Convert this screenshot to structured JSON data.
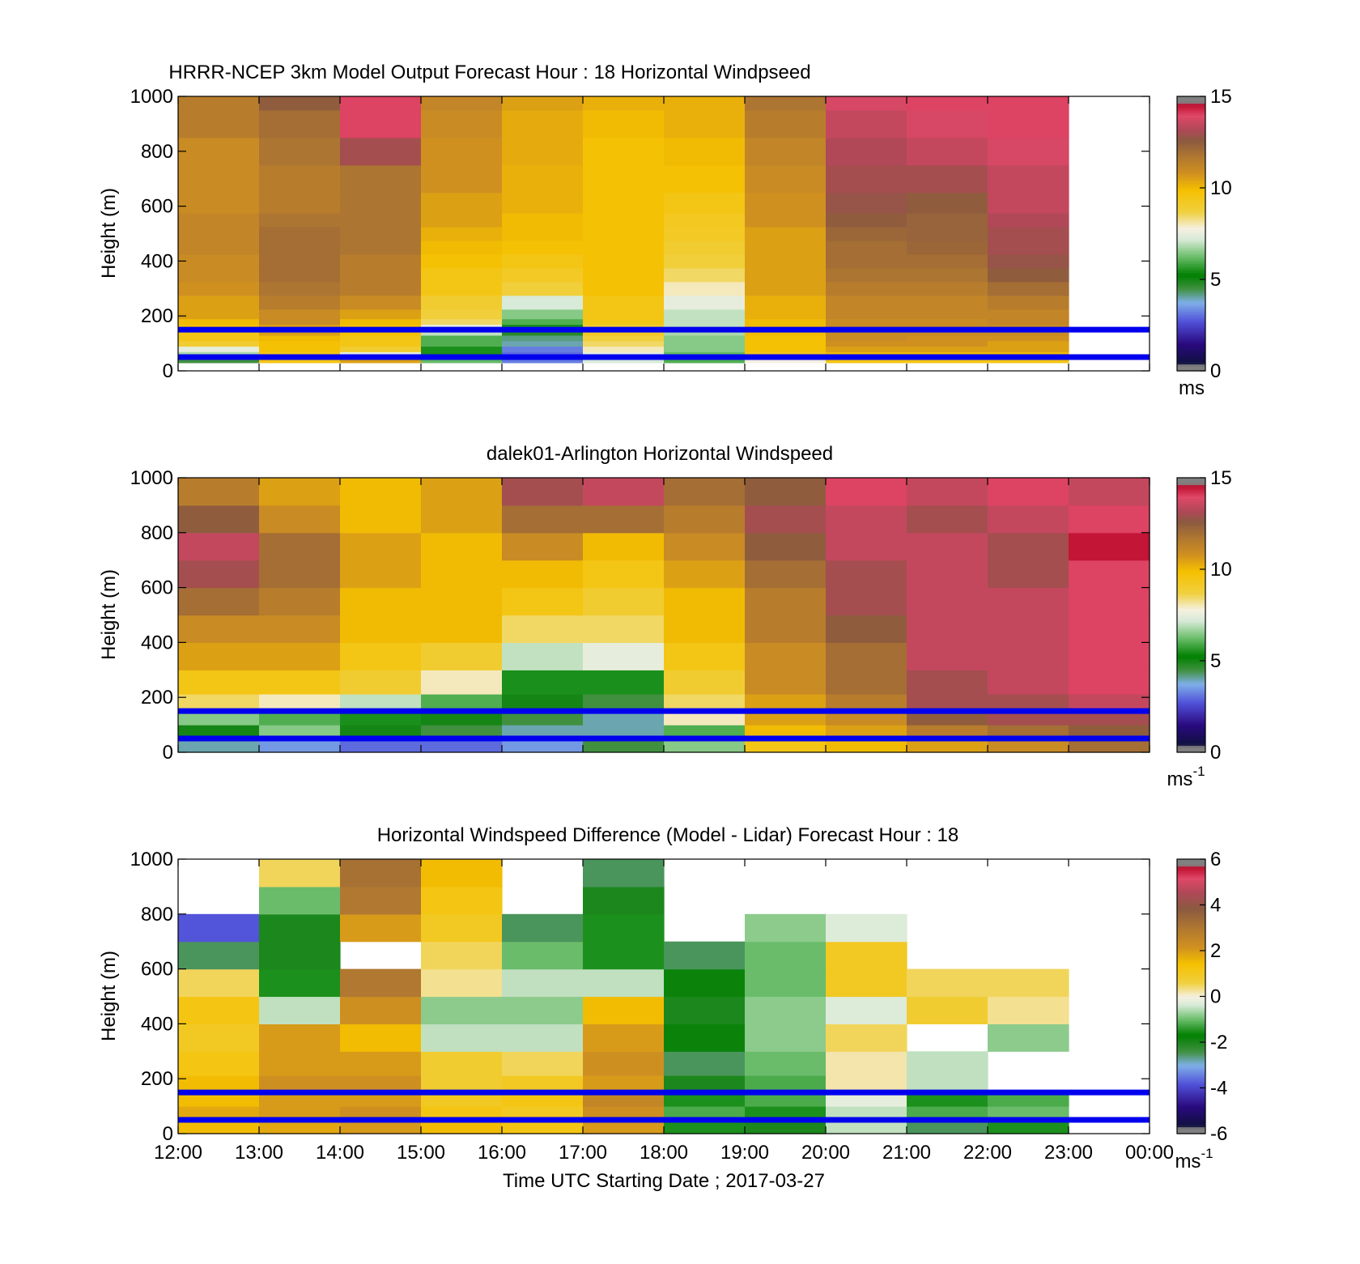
{
  "figure": {
    "xlabel": "Time UTC  Starting Date ; 2017-03-27"
  },
  "chart_data": [
    {
      "type": "heatmap",
      "title": "HRRR-NCEP 3km Model Output   Forecast Hour : 18 Horizontal Windpseed",
      "ylabel": "Height (m)",
      "ylim": [
        0,
        1000
      ],
      "yticks": [
        "0",
        "200",
        "400",
        "600",
        "800",
        "1000"
      ],
      "xticks": [
        "12:00",
        "13:00",
        "14:00",
        "15:00",
        "16:00",
        "17:00",
        "18:00",
        "19:00",
        "20:00",
        "21:00",
        "22:00",
        "23:00",
        "00:00"
      ],
      "colorbar": {
        "label": "ms",
        "ticks": [
          "0",
          "5",
          "10",
          "15"
        ],
        "range": [
          0,
          15
        ],
        "colormap": "wind"
      },
      "reference_lines_m": [
        50,
        150
      ],
      "reference_line_color": "#0000ee",
      "heights_m": [
        40,
        60,
        80,
        100,
        120,
        140,
        160,
        180,
        200,
        250,
        300,
        350,
        400,
        450,
        500,
        550,
        600,
        700,
        800,
        900,
        1000
      ],
      "times_utc": [
        "12:00",
        "13:00",
        "14:00",
        "15:00",
        "16:00",
        "17:00",
        "18:00",
        "19:00",
        "20:00",
        "21:00",
        "22:00"
      ],
      "values": [
        [
          4.5,
          9.5,
          10.5,
          6.2,
          3.2,
          7.2,
          6.0,
          7.8,
          9.5,
          9.5,
          9.5
        ],
        [
          6.8,
          9.5,
          7.5,
          5.5,
          3.0,
          7.5,
          6.2,
          9.5,
          10.0,
          10.0,
          10.0
        ],
        [
          7.5,
          9.8,
          9.0,
          5.5,
          3.2,
          8.0,
          6.5,
          9.8,
          10.5,
          10.5,
          10.5
        ],
        [
          9.0,
          9.8,
          9.5,
          6.0,
          4.0,
          8.5,
          6.5,
          9.8,
          10.8,
          10.8,
          10.5
        ],
        [
          9.5,
          10.0,
          9.5,
          6.0,
          4.2,
          8.8,
          6.5,
          9.8,
          11.0,
          10.8,
          10.8
        ],
        [
          9.5,
          10.5,
          9.8,
          7.0,
          4.8,
          9.2,
          6.8,
          10.0,
          11.0,
          11.0,
          11.0
        ],
        [
          9.8,
          10.5,
          9.8,
          7.5,
          5.5,
          9.0,
          7.0,
          10.0,
          11.0,
          11.0,
          11.0
        ],
        [
          10.0,
          11.0,
          10.0,
          8.5,
          6.0,
          9.5,
          7.0,
          10.0,
          11.0,
          11.0,
          11.2
        ],
        [
          10.5,
          11.0,
          10.5,
          8.8,
          6.5,
          9.5,
          7.0,
          10.2,
          11.2,
          11.2,
          11.2
        ],
        [
          10.5,
          11.5,
          11.0,
          9.0,
          7.2,
          9.5,
          7.5,
          10.2,
          11.2,
          11.2,
          11.5
        ],
        [
          10.8,
          11.8,
          11.5,
          9.5,
          8.8,
          9.8,
          8.0,
          10.5,
          11.5,
          11.5,
          12.0
        ],
        [
          11.0,
          12.0,
          11.5,
          9.5,
          9.2,
          9.8,
          8.5,
          10.5,
          11.8,
          11.8,
          12.5
        ],
        [
          11.0,
          12.0,
          11.5,
          9.8,
          9.5,
          9.8,
          8.8,
          10.5,
          12.0,
          12.0,
          12.8
        ],
        [
          11.2,
          12.0,
          11.8,
          10.0,
          9.8,
          9.8,
          9.0,
          10.5,
          12.0,
          12.2,
          13.0
        ],
        [
          11.2,
          12.0,
          11.8,
          10.2,
          10.0,
          9.8,
          9.2,
          10.5,
          12.2,
          12.3,
          13.0
        ],
        [
          11.2,
          11.8,
          11.8,
          10.5,
          10.0,
          9.8,
          9.3,
          10.8,
          12.5,
          12.3,
          13.2
        ],
        [
          11.0,
          11.5,
          11.8,
          10.5,
          10.2,
          9.8,
          9.5,
          10.8,
          12.8,
          12.5,
          13.5
        ],
        [
          11.0,
          11.5,
          11.8,
          10.8,
          10.2,
          9.8,
          9.8,
          11.0,
          13.0,
          13.0,
          13.5
        ],
        [
          11.0,
          11.8,
          13.0,
          10.8,
          10.3,
          9.8,
          10.0,
          11.2,
          13.2,
          13.5,
          13.8
        ],
        [
          11.5,
          12.0,
          14.0,
          11.0,
          10.3,
          10.0,
          10.2,
          11.5,
          13.5,
          13.8,
          14.0
        ],
        [
          11.5,
          12.5,
          14.0,
          11.2,
          10.5,
          10.2,
          10.2,
          11.8,
          13.8,
          14.0,
          14.0
        ]
      ]
    },
    {
      "type": "heatmap",
      "title": "dalek01-Arlington  Horizontal Windspeed",
      "ylabel": "Height (m)",
      "ylim": [
        0,
        1000
      ],
      "yticks": [
        "0",
        "200",
        "400",
        "600",
        "800",
        "1000"
      ],
      "xticks": [
        "12:00",
        "13:00",
        "14:00",
        "15:00",
        "16:00",
        "17:00",
        "18:00",
        "19:00",
        "20:00",
        "21:00",
        "22:00",
        "23:00",
        "00:00"
      ],
      "colorbar": {
        "label": "ms",
        "label_superscript": "-1",
        "ticks": [
          "0",
          "5",
          "10",
          "15"
        ],
        "range": [
          0,
          15
        ],
        "colormap": "wind"
      },
      "reference_lines_m": [
        50,
        150
      ],
      "reference_line_color": "#0000ee",
      "times_utc": [
        "12:00",
        "13:00",
        "14:00",
        "15:00",
        "16:00",
        "17:00",
        "18:00",
        "19:00",
        "20:00",
        "21:00",
        "22:00",
        "23:00"
      ],
      "heights_m": [
        25,
        75,
        125,
        175,
        250,
        350,
        450,
        550,
        650,
        750,
        850,
        950
      ],
      "values": [
        [
          4.0,
          3.5,
          3.0,
          3.0,
          3.5,
          4.5,
          6.5,
          9.5,
          10.0,
          10.5,
          11.0,
          12.0
        ],
        [
          5.0,
          6.5,
          5.0,
          4.5,
          4.0,
          4.0,
          6.0,
          10.0,
          10.5,
          11.5,
          12.0,
          12.5
        ],
        [
          6.5,
          6.0,
          5.5,
          5.0,
          4.5,
          4.0,
          8.0,
          10.5,
          11.0,
          12.5,
          13.0,
          13.0
        ],
        [
          8.5,
          8.0,
          7.0,
          6.0,
          5.0,
          4.5,
          8.5,
          10.5,
          11.5,
          13.0,
          13.0,
          13.5
        ],
        [
          9.5,
          9.5,
          9.0,
          8.0,
          5.5,
          5.5,
          9.0,
          11.0,
          12.0,
          13.0,
          13.5,
          14.0
        ],
        [
          10.5,
          10.5,
          9.5,
          9.0,
          7.0,
          7.5,
          9.5,
          11.0,
          12.0,
          13.5,
          13.5,
          14.0
        ],
        [
          11.0,
          11.0,
          10.0,
          10.0,
          8.5,
          8.5,
          10.0,
          11.5,
          12.5,
          13.5,
          13.5,
          14.0
        ],
        [
          12.0,
          11.5,
          10.0,
          10.0,
          9.5,
          9.0,
          10.0,
          11.5,
          13.0,
          13.5,
          13.5,
          14.0
        ],
        [
          13.0,
          12.0,
          10.5,
          10.0,
          10.0,
          9.5,
          10.5,
          12.0,
          13.0,
          13.5,
          13.0,
          14.0
        ],
        [
          13.5,
          12.0,
          10.5,
          10.0,
          11.0,
          10.0,
          11.0,
          12.5,
          13.5,
          13.5,
          13.0,
          14.5
        ],
        [
          12.5,
          11.0,
          10.0,
          10.5,
          12.0,
          12.0,
          11.5,
          13.0,
          13.5,
          13.0,
          13.5,
          14.0
        ],
        [
          11.5,
          10.5,
          10.0,
          10.5,
          13.0,
          13.5,
          12.0,
          12.5,
          14.0,
          13.5,
          14.0,
          13.5
        ]
      ]
    },
    {
      "type": "heatmap",
      "title": "Horizontal Windspeed Difference (Model - Lidar) Forecast Hour : 18",
      "ylabel": "Height (m)",
      "xlabel": "Time UTC  Starting Date ; 2017-03-27",
      "ylim": [
        0,
        1000
      ],
      "yticks": [
        "0",
        "200",
        "400",
        "600",
        "800",
        "1000"
      ],
      "xticks": [
        "12:00",
        "13:00",
        "14:00",
        "15:00",
        "16:00",
        "17:00",
        "18:00",
        "19:00",
        "20:00",
        "21:00",
        "22:00",
        "23:00",
        "00:00"
      ],
      "colorbar": {
        "label": "ms",
        "label_superscript": "-1",
        "ticks": [
          "-6",
          "-4",
          "-2",
          "0",
          "2",
          "4",
          "6"
        ],
        "range": [
          -6,
          6
        ],
        "colormap": "diff"
      },
      "reference_lines_m": [
        50,
        150
      ],
      "reference_line_color": "#0000ee",
      "times_utc": [
        "12:00",
        "13:00",
        "14:00",
        "15:00",
        "16:00",
        "17:00",
        "18:00",
        "19:00",
        "20:00",
        "21:00",
        "22:00"
      ],
      "heights_m": [
        25,
        75,
        125,
        175,
        250,
        350,
        450,
        550,
        650,
        750,
        850,
        950
      ],
      "values": [
        [
          1.5,
          1.8,
          2.0,
          1.5,
          1.2,
          2.0,
          -1.5,
          -2.0,
          -0.5,
          -2.5,
          -1.5
        ],
        [
          1.8,
          2.0,
          2.2,
          1.2,
          1.0,
          2.2,
          -1.2,
          -1.5,
          -0.5,
          -1.2,
          -1.0
        ],
        [
          1.5,
          2.0,
          2.0,
          1.0,
          1.2,
          2.5,
          -1.5,
          -1.2,
          -0.2,
          -1.5,
          -1.2
        ],
        [
          1.5,
          2.2,
          2.2,
          0.8,
          1.0,
          2.0,
          -2.0,
          -1.2,
          0.2,
          -0.5,
          null
        ],
        [
          1.2,
          2.0,
          2.0,
          0.8,
          0.5,
          2.2,
          -2.5,
          -1.0,
          0.2,
          -0.5,
          null
        ],
        [
          1.0,
          2.0,
          1.5,
          -0.5,
          -0.5,
          2.0,
          -1.8,
          -0.8,
          0.5,
          null,
          -0.8
        ],
        [
          1.2,
          -0.5,
          2.2,
          -0.8,
          -0.8,
          1.5,
          -2.0,
          -0.8,
          -0.3,
          0.8,
          0.3
        ],
        [
          0.5,
          -1.5,
          3.0,
          0.3,
          -0.5,
          -0.5,
          -1.8,
          -1.0,
          1.0,
          0.5,
          0.5
        ],
        [
          -2.5,
          -2.0,
          null,
          0.5,
          -1.0,
          -1.5,
          -2.5,
          -1.0,
          1.0,
          null,
          null
        ],
        [
          -3.8,
          -2.0,
          2.0,
          1.0,
          -2.5,
          -1.5,
          null,
          -0.8,
          -0.3,
          null,
          null
        ],
        [
          null,
          -1.0,
          3.0,
          1.2,
          null,
          -2.0,
          null,
          null,
          null,
          null,
          null
        ],
        [
          null,
          0.5,
          3.2,
          1.5,
          null,
          -2.5,
          null,
          null,
          null,
          null,
          null
        ]
      ]
    }
  ]
}
